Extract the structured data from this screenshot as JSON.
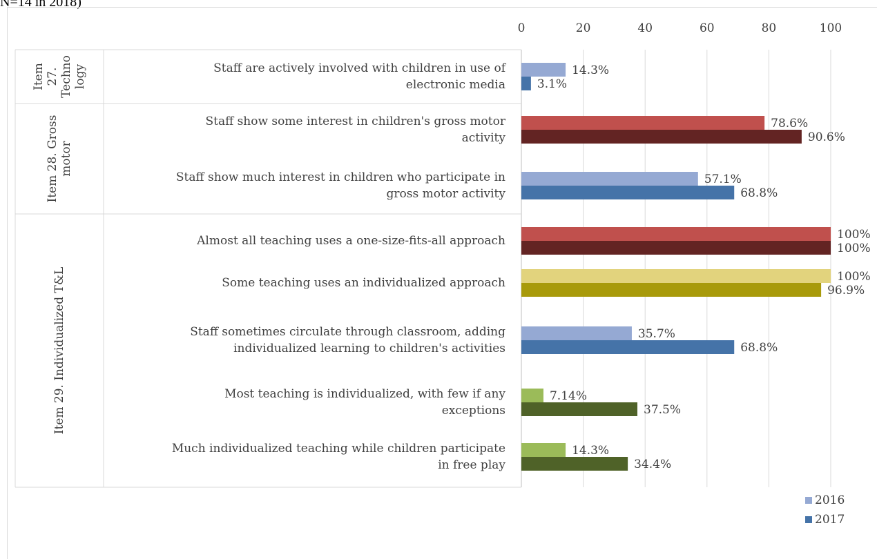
{
  "caption": "N=14 in 2018)",
  "chart_data": {
    "type": "bar",
    "orientation": "horizontal",
    "title": "",
    "xlabel": "",
    "ylabel": "",
    "xlim": [
      0,
      100
    ],
    "x_ticks": [
      "0",
      "20",
      "40",
      "60",
      "80",
      "100"
    ],
    "grid": true,
    "legend_position": "bottom-right",
    "legend": [
      {
        "name": "2016",
        "color": "#95a9d3"
      },
      {
        "name": "2017",
        "color": "#4573a8"
      }
    ],
    "groups": [
      {
        "label": "Item 27. Technology",
        "label_lines": [
          "Item",
          "27.",
          "Techno",
          "logy"
        ],
        "items": [
          {
            "lines": [
              "Staff are actively involved with children in use of",
              "electronic media"
            ],
            "values": [
              14.3,
              3.1
            ],
            "labels": [
              "14.3%",
              "3.1%"
            ],
            "colors": [
              "#95a9d3",
              "#4573a8"
            ]
          }
        ]
      },
      {
        "label": "Item 28. Gross motor",
        "label_lines": [
          "Item 28. Gross",
          "motor"
        ],
        "items": [
          {
            "lines": [
              "Staff show some interest in children's gross motor",
              "activity"
            ],
            "values": [
              78.6,
              90.6
            ],
            "labels": [
              "78.6%",
              "90.6%"
            ],
            "colors": [
              "#c0504d",
              "#632423"
            ]
          },
          {
            "lines": [
              "Staff show much interest in children who participate in",
              "gross motor activity"
            ],
            "values": [
              57.1,
              68.8
            ],
            "labels": [
              "57.1%",
              "68.8%"
            ],
            "colors": [
              "#95a9d3",
              "#4573a8"
            ]
          }
        ]
      },
      {
        "label": "Item 29. Individualized T&L",
        "label_lines": [
          "Item 29. Individualized T&L"
        ],
        "items": [
          {
            "lines": [
              "Almost all teaching uses a one-size-fits-all approach"
            ],
            "values": [
              100,
              100
            ],
            "labels": [
              "100%",
              "100%"
            ],
            "colors": [
              "#c0504d",
              "#632423"
            ]
          },
          {
            "lines": [
              "Some teaching uses an individualized approach"
            ],
            "values": [
              100,
              96.9
            ],
            "labels": [
              "100%",
              "96.9%"
            ],
            "colors": [
              "#e2d37d",
              "#a89a0a"
            ]
          },
          {
            "lines": [
              "Staff sometimes circulate through classroom, adding",
              "individualized learning to children's activities"
            ],
            "values": [
              35.7,
              68.8
            ],
            "labels": [
              "35.7%",
              "68.8%"
            ],
            "colors": [
              "#95a9d3",
              "#4573a8"
            ]
          },
          {
            "lines": [
              "Most teaching is individualized, with few if any",
              "exceptions"
            ],
            "values": [
              7.14,
              37.5
            ],
            "labels": [
              "7.14%",
              "37.5%"
            ],
            "colors": [
              "#9bbb59",
              "#4f6228"
            ]
          },
          {
            "lines": [
              "Much individualized teaching while children participate",
              "in free play"
            ],
            "values": [
              14.3,
              34.4
            ],
            "labels": [
              "14.3%",
              "34.4%"
            ],
            "colors": [
              "#9bbb59",
              "#4f6228"
            ]
          }
        ]
      }
    ]
  }
}
